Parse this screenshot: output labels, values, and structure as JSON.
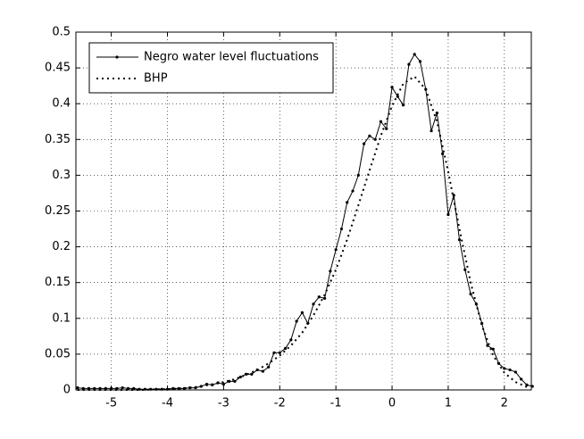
{
  "chart_data": {
    "type": "line",
    "xlim": [
      -5.63,
      2.48
    ],
    "ylim": [
      0,
      0.5
    ],
    "xticks": [
      -5,
      -4,
      -3,
      -2,
      -1,
      0,
      1,
      2
    ],
    "yticks": [
      0,
      0.05,
      0.1,
      0.15,
      0.2,
      0.25,
      0.3,
      0.35,
      0.4,
      0.45,
      0.5
    ],
    "grid": true,
    "legend": "upper left",
    "series": [
      {
        "name": "Negro water level fluctuations",
        "color": "#000000",
        "style": "solid",
        "marker": true,
        "x": [
          -5.6,
          -5.5,
          -5.4,
          -5.3,
          -5.2,
          -5.1,
          -5.0,
          -4.9,
          -4.8,
          -4.7,
          -4.6,
          -4.5,
          -4.4,
          -4.3,
          -4.2,
          -4.1,
          -4.0,
          -3.9,
          -3.8,
          -3.7,
          -3.6,
          -3.5,
          -3.4,
          -3.3,
          -3.2,
          -3.1,
          -3.0,
          -2.9,
          -2.8,
          -2.7,
          -2.6,
          -2.5,
          -2.4,
          -2.3,
          -2.2,
          -2.1,
          -2.0,
          -1.9,
          -1.8,
          -1.7,
          -1.6,
          -1.5,
          -1.4,
          -1.3,
          -1.2,
          -1.1,
          -1.0,
          -0.9,
          -0.8,
          -0.7,
          -0.6,
          -0.5,
          -0.4,
          -0.3,
          -0.2,
          -0.1,
          0.0,
          0.1,
          0.2,
          0.3,
          0.4,
          0.5,
          0.6,
          0.7,
          0.8,
          0.9,
          1.0,
          1.1,
          1.2,
          1.3,
          1.4,
          1.5,
          1.6,
          1.7,
          1.8,
          1.9,
          2.0,
          2.1,
          2.2,
          2.3,
          2.4,
          2.5
        ],
        "values": [
          0.003,
          0.002,
          0.002,
          0.002,
          0.002,
          0.002,
          0.002,
          0.002,
          0.003,
          0.002,
          0.002,
          0.001,
          0.001,
          0.001,
          0.001,
          0.001,
          0.001,
          0.002,
          0.002,
          0.002,
          0.003,
          0.003,
          0.005,
          0.008,
          0.007,
          0.01,
          0.008,
          0.012,
          0.012,
          0.018,
          0.022,
          0.022,
          0.028,
          0.026,
          0.032,
          0.052,
          0.052,
          0.058,
          0.07,
          0.096,
          0.108,
          0.093,
          0.12,
          0.13,
          0.128,
          0.166,
          0.196,
          0.225,
          0.262,
          0.278,
          0.3,
          0.344,
          0.355,
          0.35,
          0.375,
          0.365,
          0.423,
          0.41,
          0.398,
          0.455,
          0.469,
          0.459,
          0.42,
          0.362,
          0.387,
          0.33,
          0.245,
          0.272,
          0.21,
          0.168,
          0.134,
          0.12,
          0.093,
          0.062,
          0.057,
          0.037,
          0.03,
          0.028,
          0.025,
          0.015,
          0.007,
          0.005
        ]
      },
      {
        "name": "BHP",
        "color": "#000000",
        "style": "dotted",
        "marker": false,
        "x": [
          -5.6,
          -5.4,
          -5.2,
          -5.0,
          -4.8,
          -4.6,
          -4.4,
          -4.2,
          -4.0,
          -3.8,
          -3.6,
          -3.4,
          -3.2,
          -3.0,
          -2.8,
          -2.6,
          -2.4,
          -2.2,
          -2.0,
          -1.8,
          -1.6,
          -1.4,
          -1.2,
          -1.0,
          -0.8,
          -0.6,
          -0.4,
          -0.2,
          0.0,
          0.2,
          0.4,
          0.6,
          0.8,
          1.0,
          1.2,
          1.4,
          1.6,
          1.8,
          2.0,
          2.2,
          2.4
        ],
        "values": [
          0,
          0,
          0,
          0,
          0,
          0,
          0,
          0.001,
          0.001,
          0.002,
          0.003,
          0.005,
          0.008,
          0.011,
          0.015,
          0.021,
          0.028,
          0.037,
          0.048,
          0.062,
          0.08,
          0.104,
          0.133,
          0.168,
          0.21,
          0.258,
          0.307,
          0.355,
          0.397,
          0.428,
          0.438,
          0.42,
          0.375,
          0.305,
          0.225,
          0.15,
          0.09,
          0.048,
          0.024,
          0.011,
          0.004
        ]
      }
    ]
  }
}
